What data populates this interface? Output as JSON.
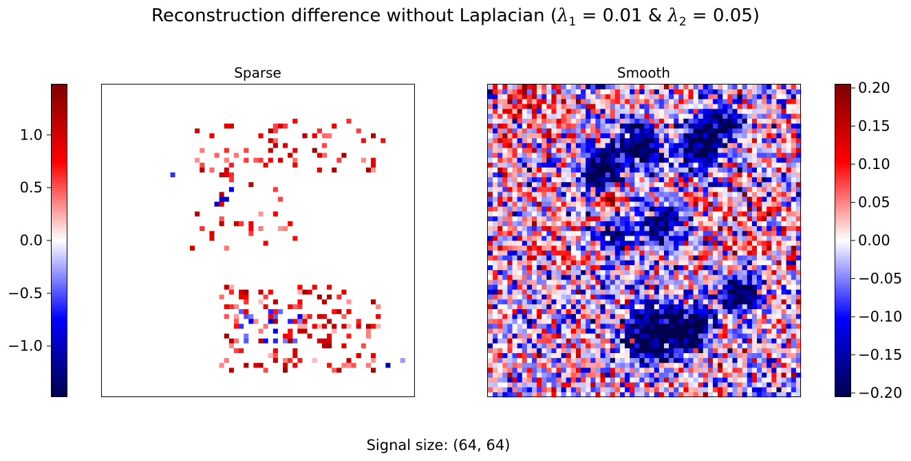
{
  "title": {
    "prefix": "Reconstruction difference without Laplacian (",
    "lambda1_symbol": "λ",
    "lambda1_sub": "1",
    "eq1": " = 0.01 & ",
    "lambda2_symbol": "λ",
    "lambda2_sub": "2",
    "eq2": " = 0.05)"
  },
  "footer": "Signal size: (64, 64)",
  "chart_data": [
    {
      "type": "heatmap",
      "title": "Sparse",
      "grid_size": [
        64,
        64
      ],
      "colormap": "seismic",
      "colorbar": {
        "placement": "left",
        "range": [
          -1.48,
          1.48
        ],
        "ticks": [
          1.0,
          0.5,
          0.0,
          -0.5,
          -1.0
        ],
        "tick_labels": [
          "1.0",
          "0.5",
          "0.0",
          "−0.5",
          "−1.0"
        ]
      },
      "background_value": 0.0,
      "nonzero_regions": [
        {
          "region": "upper-middle scattered cluster",
          "value_range": [
            0.3,
            1.3
          ]
        },
        {
          "region": "lower-middle dense cluster",
          "value_range": [
            -0.9,
            1.3
          ]
        },
        {
          "region": "small blue patch near center-left",
          "value_range": [
            -1.1,
            -0.8
          ]
        },
        {
          "region": "isolated points lower-right",
          "value_range": [
            -1.1,
            -0.3
          ]
        }
      ]
    },
    {
      "type": "heatmap",
      "title": "Smooth",
      "grid_size": [
        64,
        64
      ],
      "colormap": "seismic",
      "colorbar": {
        "placement": "right",
        "range": [
          -0.205,
          0.205
        ],
        "ticks": [
          0.2,
          0.15,
          0.1,
          0.05,
          0.0,
          -0.05,
          -0.1,
          -0.15,
          -0.2
        ],
        "tick_labels": [
          "0.20",
          "0.15",
          "0.10",
          "0.05",
          "0.00",
          "−0.05",
          "−0.10",
          "−0.15",
          "−0.20"
        ]
      },
      "noise_level": 0.07,
      "dark_blue_blobs": [
        {
          "region": "upper-center",
          "value": -0.2
        },
        {
          "region": "upper-right",
          "value": -0.2
        },
        {
          "region": "center",
          "value": -0.17
        },
        {
          "region": "lower-center",
          "value": -0.2
        },
        {
          "region": "lower-right",
          "value": -0.18
        }
      ],
      "red_spots": [
        {
          "region": "left-center",
          "value": 0.18
        }
      ]
    }
  ]
}
